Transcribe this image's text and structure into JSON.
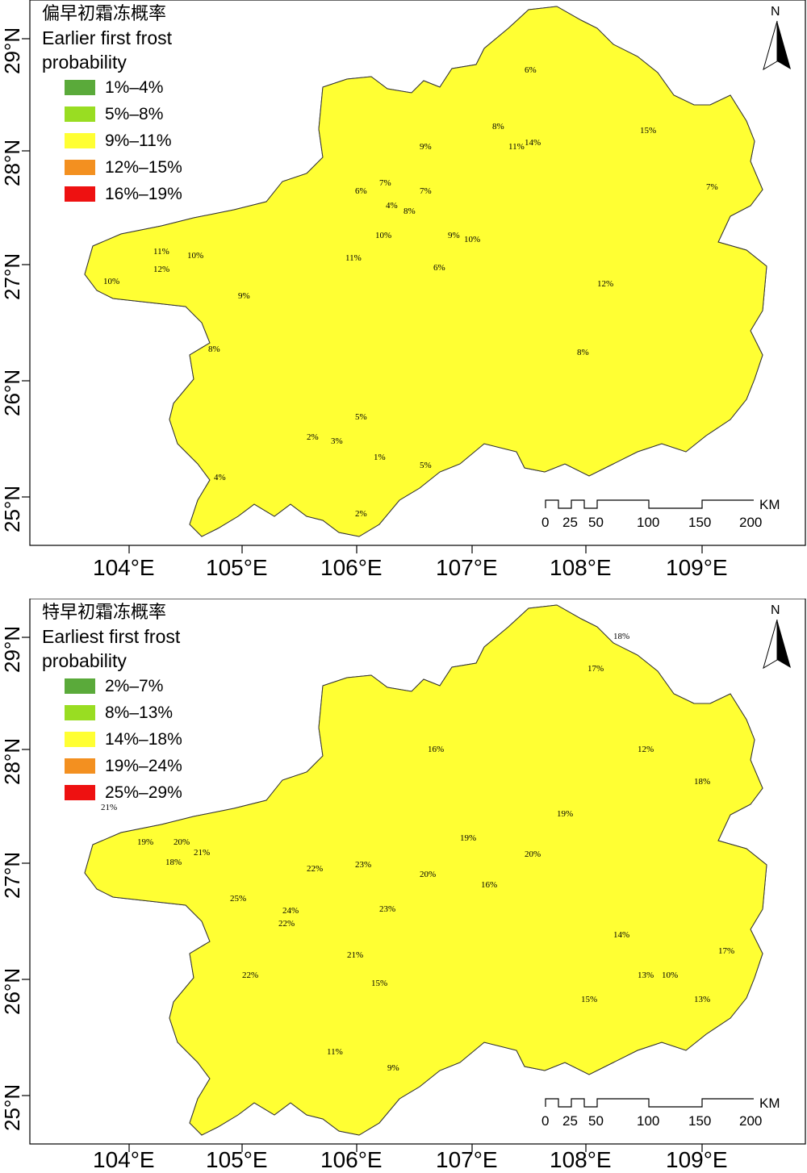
{
  "colors": {
    "c1": "#5aaa3a",
    "c2": "#99dd22",
    "c3": "#ffff33",
    "c4": "#f39020",
    "c5": "#ee1111",
    "line": "#333333"
  },
  "top": {
    "title_cn": "偏早初霜冻概率",
    "title_en_1": "Earlier first frost",
    "title_en_2": "probability",
    "legend": [
      "1%–4%",
      "5%–8%",
      "9%–11%",
      "12%–15%",
      "16%–19%"
    ],
    "contour_labels": [
      "11%",
      "10%",
      "12%",
      "10%",
      "9%",
      "8%",
      "11%",
      "10%",
      "6%",
      "7%",
      "8%",
      "9%",
      "4%",
      "5%",
      "2%",
      "1%",
      "2%",
      "3%",
      "5%",
      "4%",
      "6%",
      "7%",
      "8%",
      "9%",
      "10%",
      "11%",
      "12%",
      "14%",
      "15%",
      "8%",
      "7%",
      "6%"
    ]
  },
  "bottom": {
    "title_cn": "特早初霜冻概率",
    "title_en_1": "Earliest first frost",
    "title_en_2": "probability",
    "legend": [
      "2%–7%",
      "8%–13%",
      "14%–18%",
      "19%–24%",
      "25%–29%"
    ],
    "contour_labels": [
      "21%",
      "19%",
      "18%",
      "20%",
      "21%",
      "22%",
      "25%",
      "24%",
      "23%",
      "22%",
      "21%",
      "20%",
      "19%",
      "18%",
      "17%",
      "16%",
      "15%",
      "14%",
      "13%",
      "12%",
      "11%",
      "9%",
      "20%",
      "22%",
      "23%",
      "15%",
      "17%",
      "18%",
      "19%",
      "16%",
      "13%",
      "10%"
    ]
  },
  "axes": {
    "lon": [
      "104°E",
      "105°E",
      "106°E",
      "107°E",
      "108°E",
      "109°E"
    ],
    "lat": [
      "29°N",
      "28°N",
      "27°N",
      "26°N",
      "25°N"
    ]
  },
  "north": "N",
  "scale": {
    "ticks": [
      "0",
      "25",
      "50",
      "100",
      "150",
      "200"
    ],
    "unit": "KM"
  }
}
